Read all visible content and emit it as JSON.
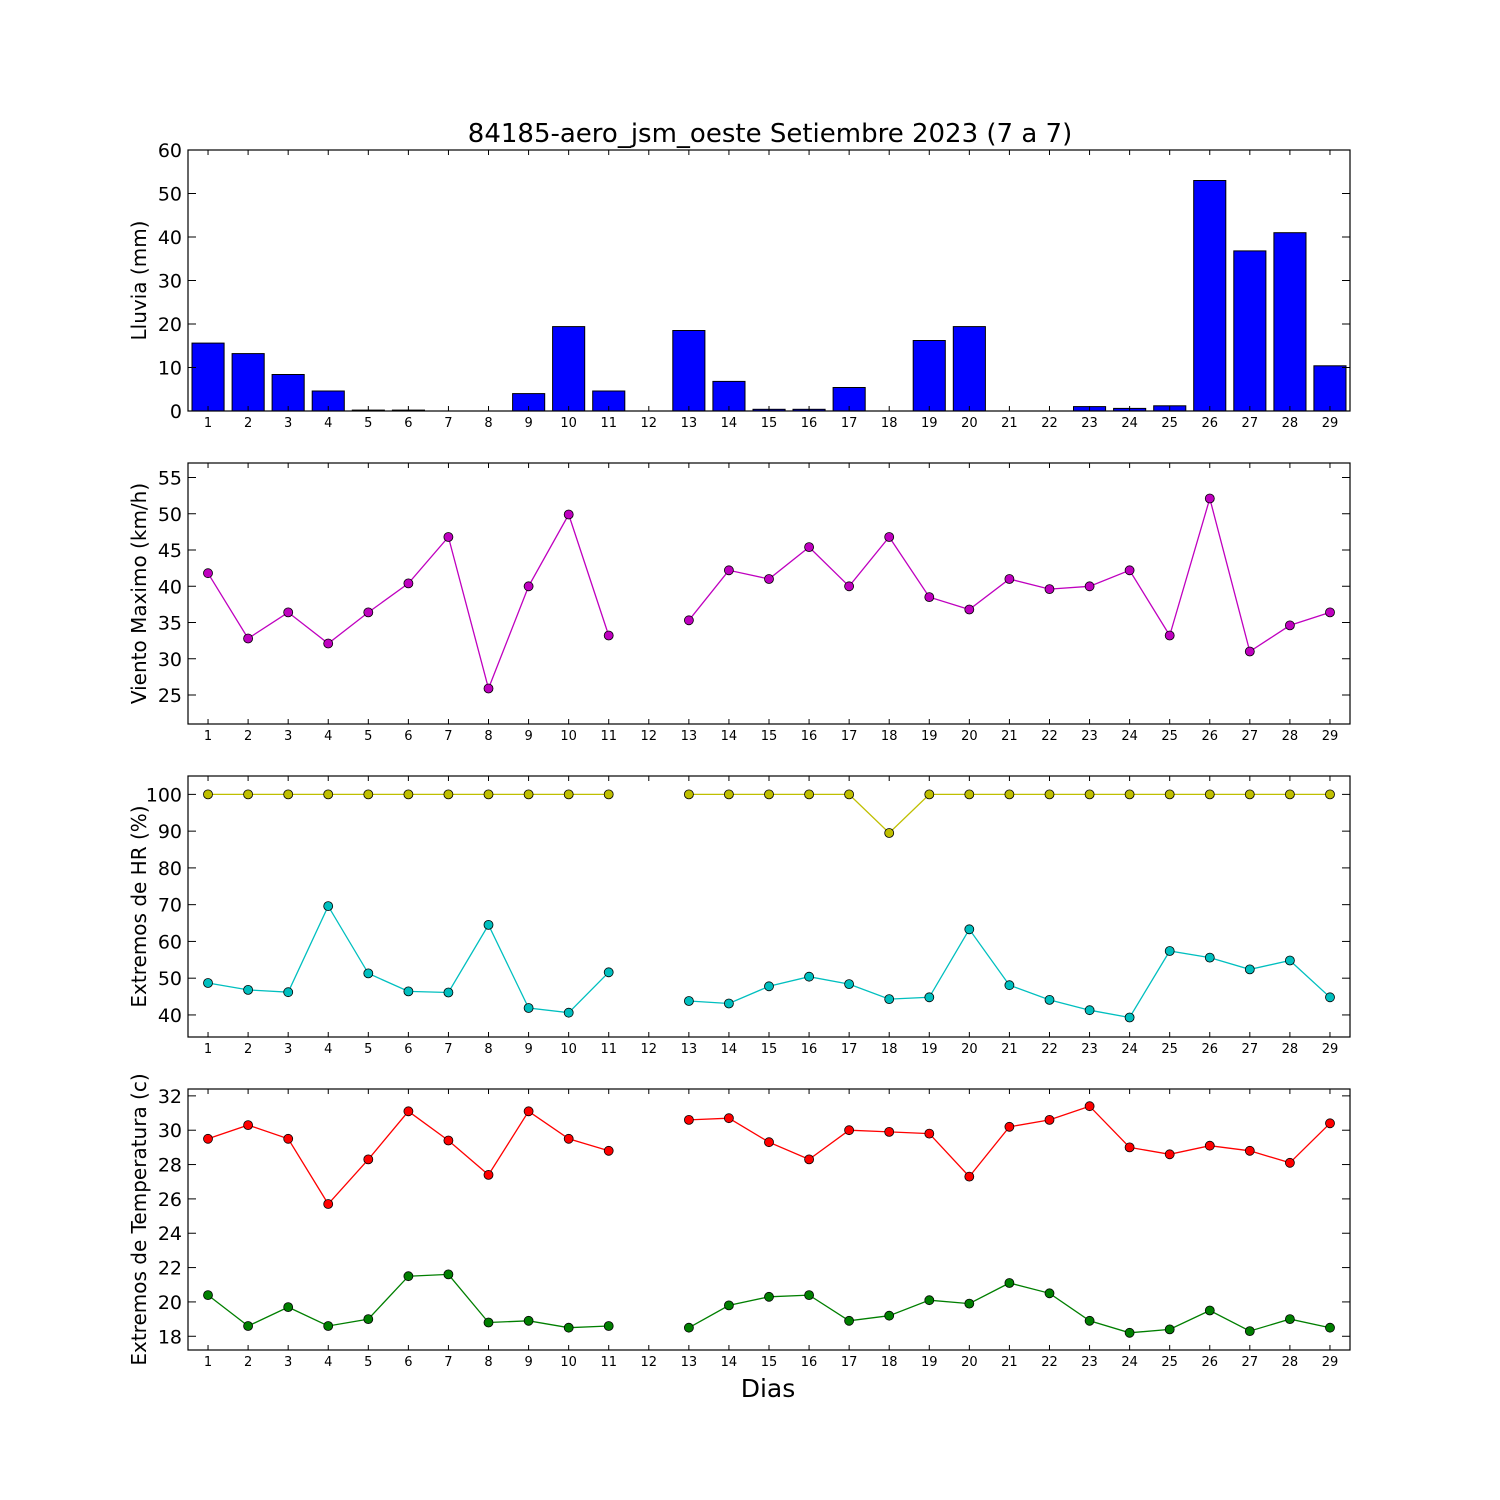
{
  "title": "84185-aero_jsm_oeste Setiembre 2023  (7 a 7)",
  "xlabel": "Dias",
  "chart_data": [
    {
      "type": "bar",
      "ylabel": "Lluvia (mm)",
      "ylim": [
        0,
        60
      ],
      "yticks": [
        0,
        10,
        20,
        30,
        40,
        50,
        60
      ],
      "categories": [
        1,
        2,
        3,
        4,
        5,
        6,
        7,
        8,
        9,
        10,
        11,
        12,
        13,
        14,
        15,
        16,
        17,
        18,
        19,
        20,
        21,
        22,
        23,
        24,
        25,
        26,
        27,
        28,
        29
      ],
      "series": [
        {
          "color": "#0000ff",
          "values": [
            15.6,
            13.2,
            8.4,
            4.6,
            0.2,
            0.2,
            0,
            0,
            4.0,
            19.4,
            4.6,
            null,
            18.5,
            6.8,
            0.4,
            0.4,
            5.4,
            0,
            16.2,
            19.4,
            0,
            0,
            1.0,
            0.6,
            1.2,
            53.0,
            36.8,
            41.0,
            10.4
          ]
        }
      ]
    },
    {
      "type": "line",
      "ylabel": "Viento Maximo (km/h)",
      "ylim": [
        21,
        57
      ],
      "yticks": [
        25,
        30,
        35,
        40,
        45,
        50,
        55
      ],
      "x": [
        1,
        2,
        3,
        4,
        5,
        6,
        7,
        8,
        9,
        10,
        11,
        12,
        13,
        14,
        15,
        16,
        17,
        18,
        19,
        20,
        21,
        22,
        23,
        24,
        25,
        26,
        27,
        28,
        29
      ],
      "series": [
        {
          "color": "#bf00bf",
          "values": [
            41.8,
            32.8,
            36.4,
            32.1,
            36.4,
            40.4,
            46.8,
            25.9,
            40.0,
            49.9,
            33.2,
            null,
            35.3,
            42.2,
            41.0,
            45.4,
            40.0,
            46.8,
            38.5,
            36.8,
            41.0,
            39.6,
            40.0,
            42.2,
            33.2,
            52.1,
            31.0,
            34.6,
            36.4
          ]
        }
      ]
    },
    {
      "type": "line",
      "ylabel": "Extremos de HR (%)",
      "ylim": [
        34,
        105
      ],
      "yticks": [
        40,
        50,
        60,
        70,
        80,
        90,
        100
      ],
      "x": [
        1,
        2,
        3,
        4,
        5,
        6,
        7,
        8,
        9,
        10,
        11,
        12,
        13,
        14,
        15,
        16,
        17,
        18,
        19,
        20,
        21,
        22,
        23,
        24,
        25,
        26,
        27,
        28,
        29
      ],
      "series": [
        {
          "color": "#bfbf00",
          "values": [
            100,
            100,
            100,
            100,
            100,
            100,
            100,
            100,
            100,
            100,
            100,
            null,
            100,
            100,
            100,
            100,
            100,
            89.5,
            100,
            100,
            100,
            100,
            100,
            100,
            100,
            100,
            100,
            100,
            100
          ]
        },
        {
          "color": "#00bfbf",
          "values": [
            48.7,
            46.8,
            46.2,
            69.6,
            51.3,
            46.4,
            46.1,
            64.5,
            41.9,
            40.6,
            51.6,
            null,
            43.8,
            43.1,
            47.8,
            50.4,
            48.4,
            44.3,
            44.8,
            63.3,
            48.1,
            44.1,
            41.3,
            39.3,
            57.4,
            55.6,
            52.4,
            54.8,
            44.8
          ]
        }
      ]
    },
    {
      "type": "line",
      "ylabel": "Extremos de Temperatura (c)",
      "ylim": [
        17.2,
        32.4
      ],
      "yticks": [
        18,
        20,
        22,
        24,
        26,
        28,
        30,
        32
      ],
      "x": [
        1,
        2,
        3,
        4,
        5,
        6,
        7,
        8,
        9,
        10,
        11,
        12,
        13,
        14,
        15,
        16,
        17,
        18,
        19,
        20,
        21,
        22,
        23,
        24,
        25,
        26,
        27,
        28,
        29
      ],
      "series": [
        {
          "color": "#ff0000",
          "values": [
            29.5,
            30.3,
            29.5,
            25.7,
            28.3,
            31.1,
            29.4,
            27.4,
            31.1,
            29.5,
            28.8,
            null,
            30.6,
            30.7,
            29.3,
            28.3,
            30.0,
            29.9,
            29.8,
            27.3,
            30.2,
            30.6,
            31.4,
            29.0,
            28.6,
            29.1,
            28.8,
            28.1,
            30.4
          ]
        },
        {
          "color": "#007f00",
          "values": [
            20.4,
            18.6,
            19.7,
            18.6,
            19.0,
            21.5,
            21.6,
            18.8,
            18.9,
            18.5,
            18.6,
            null,
            18.5,
            19.8,
            20.3,
            20.4,
            18.9,
            19.2,
            20.1,
            19.9,
            21.1,
            20.5,
            18.9,
            18.2,
            18.4,
            19.5,
            18.3,
            19.0,
            18.5
          ]
        }
      ]
    }
  ]
}
